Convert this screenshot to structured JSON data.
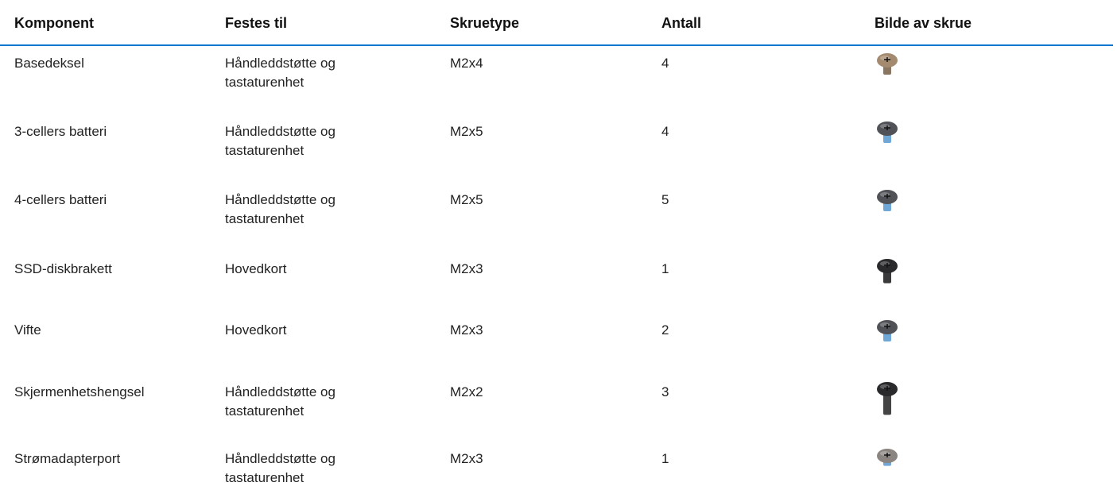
{
  "table": {
    "header": [
      "Komponent",
      "Festes til",
      "Skruetype",
      "Antall",
      "Bilde av skrue"
    ],
    "rows": [
      [
        "Basedeksel",
        "Håndleddstøtte og tastaturenhet",
        "M2x4",
        4
      ],
      [
        "3-cellers batteri",
        "Håndleddstøtte og tastaturenhet",
        "M2x5",
        4
      ],
      [
        "4-cellers batteri",
        "Håndleddstøtte og tastaturenhet",
        "M2x5",
        5
      ],
      [
        "SSD-diskbrakett",
        "Hovedkort",
        "M2x3",
        1
      ],
      [
        "Vifte",
        "Hovedkort",
        "M2x3",
        2
      ],
      [
        "Skjermenhetshengsel",
        "Håndleddstøtte og tastaturenhet",
        "M2x2",
        3
      ],
      [
        "Strømadapterport",
        "Håndleddstøtte og tastaturenhet",
        "M2x3",
        1
      ]
    ]
  }
}
